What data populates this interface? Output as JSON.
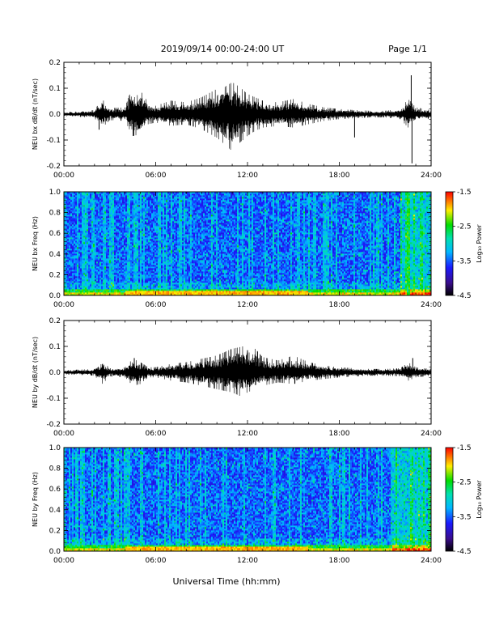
{
  "header": {
    "date_range": "2019/09/14  00:00-24:00 UT",
    "page": "Page 1/1"
  },
  "x_axis_title": "Universal Time (hh:mm)",
  "chart_data": [
    {
      "id": "bx_waveform",
      "type": "line",
      "ylabel": "NEU bx dB/dt (nT/sec)",
      "xlim": [
        0,
        24
      ],
      "ylim": [
        -0.2,
        0.2
      ],
      "x_ticks": [
        "00:00",
        "06:00",
        "12:00",
        "18:00",
        "24:00"
      ],
      "y_ticks": [
        "-0.2",
        "-0.1",
        "0.0",
        "0.1",
        "0.2"
      ],
      "envelope": {
        "hours": [
          0,
          1,
          2,
          2.5,
          3,
          4,
          4.5,
          5,
          5.5,
          6,
          7,
          8,
          9,
          10,
          10.5,
          11,
          11.5,
          12,
          12.5,
          13,
          14,
          15,
          16,
          17,
          18,
          19,
          20,
          21,
          22,
          22.5,
          23,
          24
        ],
        "upper": [
          0.006,
          0.008,
          0.012,
          0.045,
          0.018,
          0.02,
          0.085,
          0.07,
          0.035,
          0.025,
          0.04,
          0.035,
          0.05,
          0.075,
          0.08,
          0.095,
          0.08,
          0.06,
          0.05,
          0.04,
          0.035,
          0.045,
          0.03,
          0.02,
          0.015,
          0.012,
          0.01,
          0.01,
          0.015,
          0.045,
          0.02,
          0.012
        ],
        "lower": [
          -0.006,
          -0.008,
          -0.012,
          -0.04,
          -0.018,
          -0.02,
          -0.065,
          -0.06,
          -0.03,
          -0.025,
          -0.035,
          -0.03,
          -0.045,
          -0.07,
          -0.09,
          -0.11,
          -0.085,
          -0.065,
          -0.05,
          -0.04,
          -0.035,
          -0.04,
          -0.03,
          -0.02,
          -0.015,
          -0.012,
          -0.01,
          -0.01,
          -0.015,
          -0.04,
          -0.02,
          -0.012
        ]
      },
      "spikes": [
        {
          "hour": 2.3,
          "value": -0.06
        },
        {
          "hour": 19.0,
          "value": -0.09
        },
        {
          "hour": 22.7,
          "value": 0.15
        },
        {
          "hour": 22.75,
          "value": -0.19
        }
      ]
    },
    {
      "id": "bx_spectrogram",
      "type": "heatmap",
      "ylabel": "NEU bx Freq (Hz)",
      "xlim": [
        0,
        24
      ],
      "ylim": [
        0,
        1.0
      ],
      "x_ticks": [
        "00:00",
        "06:00",
        "12:00",
        "18:00",
        "24:00"
      ],
      "y_ticks": [
        "0.0",
        "0.2",
        "0.4",
        "0.6",
        "0.8",
        "1.0"
      ],
      "colorbar": {
        "label": "Log₁₀ Power",
        "range": [
          -4.5,
          -1.5
        ],
        "ticks": [
          "-1.5",
          "-2.5",
          "-3.5",
          "-4.5"
        ]
      },
      "seed": 7,
      "wide_band_hours": [
        22.5
      ],
      "noisy_from_hour": 22.0
    },
    {
      "id": "by_waveform",
      "type": "line",
      "ylabel": "NEU by dB/dt (nT/sec)",
      "xlim": [
        0,
        24
      ],
      "ylim": [
        -0.2,
        0.2
      ],
      "x_ticks": [
        "00:00",
        "06:00",
        "12:00",
        "18:00",
        "24:00"
      ],
      "y_ticks": [
        "-0.2",
        "-0.1",
        "0.0",
        "0.1",
        "0.2"
      ],
      "envelope": {
        "hours": [
          0,
          1,
          2,
          2.5,
          3,
          4,
          4.5,
          5,
          5.5,
          6,
          7,
          8,
          9,
          10,
          10.5,
          11,
          11.5,
          12,
          12.5,
          13,
          14,
          15,
          16,
          17,
          18,
          19,
          20,
          21,
          22,
          22.5,
          23,
          24
        ],
        "upper": [
          0.006,
          0.008,
          0.01,
          0.035,
          0.012,
          0.015,
          0.04,
          0.03,
          0.015,
          0.015,
          0.025,
          0.03,
          0.04,
          0.05,
          0.06,
          0.07,
          0.075,
          0.08,
          0.07,
          0.045,
          0.035,
          0.05,
          0.03,
          0.02,
          0.015,
          0.012,
          0.01,
          0.01,
          0.012,
          0.03,
          0.015,
          0.01
        ],
        "lower": [
          -0.006,
          -0.008,
          -0.01,
          -0.035,
          -0.012,
          -0.015,
          -0.04,
          -0.035,
          -0.015,
          -0.015,
          -0.025,
          -0.03,
          -0.04,
          -0.05,
          -0.055,
          -0.06,
          -0.07,
          -0.06,
          -0.05,
          -0.04,
          -0.03,
          -0.035,
          -0.025,
          -0.02,
          -0.015,
          -0.012,
          -0.01,
          -0.01,
          -0.012,
          -0.025,
          -0.015,
          -0.01
        ]
      },
      "spikes": [
        {
          "hour": 4.6,
          "value": 0.055
        },
        {
          "hour": 12.0,
          "value": 0.085
        },
        {
          "hour": 22.8,
          "value": 0.055
        }
      ]
    },
    {
      "id": "by_spectrogram",
      "type": "heatmap",
      "ylabel": "NEU by Freq (Hz)",
      "xlim": [
        0,
        24
      ],
      "ylim": [
        0,
        1.0
      ],
      "x_ticks": [
        "00:00",
        "06:00",
        "12:00",
        "18:00",
        "24:00"
      ],
      "y_ticks": [
        "0.0",
        "0.2",
        "0.4",
        "0.6",
        "0.8",
        "1.0"
      ],
      "colorbar": {
        "label": "Log₁₀ Power",
        "range": [
          -4.5,
          -1.5
        ],
        "ticks": [
          "-1.5",
          "-2.5",
          "-3.5",
          "-4.5"
        ]
      },
      "seed": 19,
      "wide_band_hours": [],
      "noisy_from_hour": 21.5
    }
  ]
}
